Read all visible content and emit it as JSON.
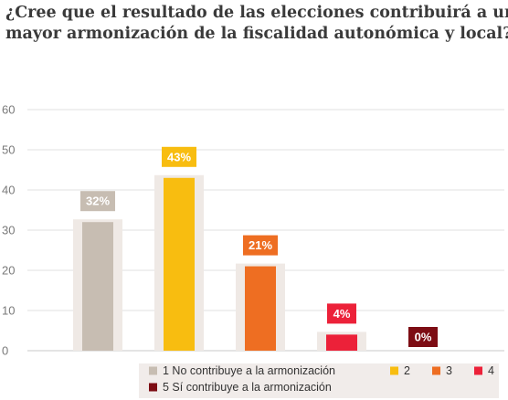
{
  "chart_data": {
    "type": "bar",
    "title_lines": [
      "¿Cree que el resultado de las elecciones contribuirá a una",
      "mayor armonización de la fiscalidad autonómica y local?"
    ],
    "categories": [
      "1",
      "2",
      "3",
      "4",
      "5"
    ],
    "values": [
      32,
      43,
      21,
      4,
      0
    ],
    "data_labels": [
      "32%",
      "43%",
      "21%",
      "4%",
      "0%"
    ],
    "colors": [
      "#c7bdb2",
      "#f8bd10",
      "#ee6e22",
      "#ec2139",
      "#7d0d14"
    ],
    "ylim": [
      0,
      60
    ],
    "yticks": [
      "0",
      "10",
      "20",
      "30",
      "40",
      "50",
      "60"
    ],
    "grid": true,
    "legend_position": "bottom",
    "legend": [
      [
        "1 No contribuye a la armonización",
        "2",
        "3",
        "4"
      ],
      [
        "5 Sí contribuye a la armonización"
      ]
    ]
  }
}
